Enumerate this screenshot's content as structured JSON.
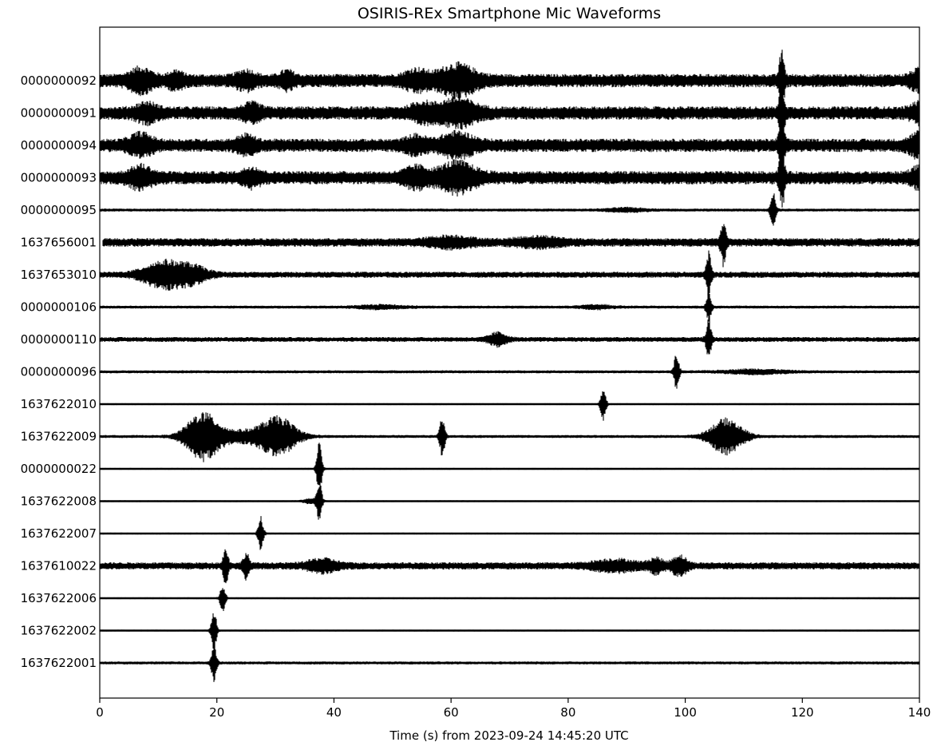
{
  "chart_data": {
    "type": "line",
    "title": "OSIRIS-REx Smartphone Mic Waveforms",
    "xlabel": "Time (s) from 2023-09-24 14:45:20 UTC",
    "ylabel": "",
    "xlim": [
      0,
      140
    ],
    "xticks": [
      0,
      20,
      40,
      60,
      80,
      100,
      120,
      140
    ],
    "grid": false,
    "series_color": "#000000",
    "traces": [
      {
        "station": "0000000092",
        "start": 0,
        "noise": 0.22,
        "arrival": 116.5,
        "spike": 0.95,
        "bursts": [
          [
            7,
            1.6,
            0.3
          ],
          [
            13,
            1.0,
            0.2
          ],
          [
            25,
            1.3,
            0.22
          ],
          [
            32,
            1.0,
            0.2
          ],
          [
            54,
            1.6,
            0.25
          ],
          [
            61,
            2.5,
            0.42
          ],
          [
            140,
            1.2,
            0.25
          ]
        ]
      },
      {
        "station": "0000000091",
        "start": 0,
        "noise": 0.22,
        "arrival": 116.5,
        "spike": 0.9,
        "bursts": [
          [
            8,
            1.4,
            0.22
          ],
          [
            26,
            1.2,
            0.2
          ],
          [
            55,
            1.5,
            0.22
          ],
          [
            61,
            2.5,
            0.36
          ],
          [
            140,
            1.2,
            0.22
          ]
        ]
      },
      {
        "station": "0000000094",
        "start": 0,
        "noise": 0.22,
        "arrival": 116.5,
        "spike": 0.9,
        "bursts": [
          [
            7,
            1.5,
            0.28
          ],
          [
            25,
            1.2,
            0.22
          ],
          [
            54,
            1.4,
            0.2
          ],
          [
            61,
            2.2,
            0.3
          ],
          [
            140,
            1.3,
            0.3
          ]
        ]
      },
      {
        "station": "0000000093",
        "start": 0,
        "noise": 0.22,
        "arrival": 116.5,
        "spike": 0.95,
        "bursts": [
          [
            7,
            1.5,
            0.28
          ],
          [
            26,
            1.2,
            0.22
          ],
          [
            54,
            1.6,
            0.25
          ],
          [
            61,
            2.5,
            0.4
          ],
          [
            140,
            1.2,
            0.25
          ]
        ]
      },
      {
        "station": "0000000095",
        "start": 0,
        "noise": 0.05,
        "arrival": 115,
        "spike": 0.62,
        "bursts": [
          [
            90,
            2.5,
            0.06
          ]
        ]
      },
      {
        "station": "1637656001",
        "start": 0.5,
        "noise": 0.14,
        "arrival": 106.5,
        "spike": 0.7,
        "bursts": [
          [
            60,
            3.0,
            0.14
          ],
          [
            75,
            3.0,
            0.12
          ]
        ]
      },
      {
        "station": "1637653010",
        "start": 0,
        "noise": 0.1,
        "arrival": 104,
        "spike": 0.7,
        "bursts": [
          [
            11,
            2.8,
            0.42
          ],
          [
            16,
            2.0,
            0.22
          ]
        ]
      },
      {
        "station": "0000000106",
        "start": 0,
        "noise": 0.05,
        "arrival": 104,
        "spike": 0.45,
        "bursts": [
          [
            48,
            3.0,
            0.06
          ],
          [
            85,
            2.0,
            0.06
          ]
        ]
      },
      {
        "station": "0000000110",
        "start": 0,
        "noise": 0.08,
        "arrival": 104,
        "spike": 0.62,
        "bursts": [
          [
            68,
            1.2,
            0.2
          ]
        ]
      },
      {
        "station": "0000000096",
        "start": 0,
        "noise": 0.05,
        "arrival": 98.5,
        "spike": 0.58,
        "bursts": [
          [
            112,
            4.0,
            0.07
          ]
        ]
      },
      {
        "station": "1637622010",
        "start": 0,
        "noise": 0.03,
        "arrival": 86,
        "spike": 0.58,
        "bursts": []
      },
      {
        "station": "1637622009",
        "start": 0,
        "noise": 0.05,
        "arrival": 58.5,
        "spike": 0.65,
        "bursts": [
          [
            17.5,
            2.2,
            0.75
          ],
          [
            30.5,
            2.4,
            0.6
          ],
          [
            107,
            2.2,
            0.58
          ],
          [
            24,
            4.0,
            0.18
          ]
        ]
      },
      {
        "station": "0000000022",
        "start": 0,
        "noise": 0.03,
        "arrival": 37.5,
        "spike": 0.9,
        "bursts": []
      },
      {
        "station": "1637622008",
        "start": 0,
        "noise": 0.03,
        "arrival": 37.5,
        "spike": 0.62,
        "bursts": [
          [
            36,
            1.0,
            0.08
          ]
        ]
      },
      {
        "station": "1637622007",
        "start": 0,
        "noise": 0.03,
        "arrival": 27.5,
        "spike": 0.55,
        "bursts": []
      },
      {
        "station": "1637610022",
        "start": 0,
        "noise": 0.12,
        "arrival": 21.5,
        "spike": 0.55,
        "bursts": [
          [
            25,
            0.4,
            0.4
          ],
          [
            38,
            2.0,
            0.18
          ],
          [
            95,
            1.0,
            0.2
          ],
          [
            99,
            1.0,
            0.3
          ],
          [
            88,
            3.0,
            0.16
          ]
        ]
      },
      {
        "station": "1637622006",
        "start": 0,
        "noise": 0.03,
        "arrival": 21,
        "spike": 0.48,
        "bursts": []
      },
      {
        "station": "1637622002",
        "start": 0,
        "noise": 0.03,
        "arrival": 19.5,
        "spike": 0.75,
        "bursts": []
      },
      {
        "station": "1637622001",
        "start": 0,
        "noise": 0.05,
        "arrival": 19.5,
        "spike": 0.6,
        "bursts": []
      }
    ]
  }
}
